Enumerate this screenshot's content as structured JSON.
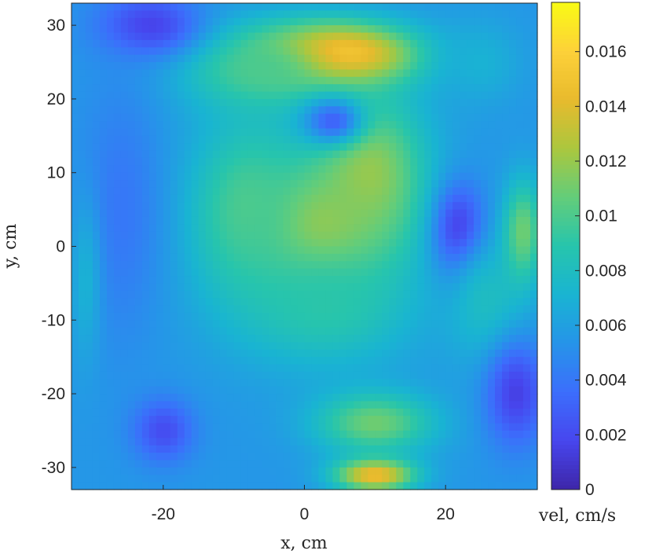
{
  "chart_data": {
    "type": "heatmap",
    "title": "",
    "xlabel": "x, cm",
    "ylabel": "y, cm",
    "colorbar_label": "vel, cm/s",
    "colormap": "parula",
    "xlim": [
      -33,
      33
    ],
    "ylim": [
      -33,
      33
    ],
    "xticks": [
      -20,
      0,
      20
    ],
    "xtick_labels": [
      "-20",
      "0",
      "20"
    ],
    "yticks": [
      30,
      20,
      10,
      0,
      -10,
      -20,
      -30
    ],
    "ytick_labels": [
      "30",
      "20",
      "10",
      "0",
      "-10",
      "-20",
      "-30"
    ],
    "clim": [
      0,
      0.0178
    ],
    "colorbar_ticks": [
      0,
      0.002,
      0.004,
      0.006,
      0.008,
      0.01,
      0.012,
      0.014,
      0.016
    ],
    "colorbar_tick_labels": [
      "0",
      "0.002",
      "0.004",
      "0.006",
      "0.008",
      "0.01",
      "0.012",
      "0.014",
      "0.016"
    ],
    "grid": false,
    "features": [
      {
        "x": 4,
        "y": 26,
        "value": 0.0178,
        "sx": 8,
        "sy": 3
      },
      {
        "x": -6,
        "y": 24,
        "value": 0.01,
        "sx": 8,
        "sy": 4
      },
      {
        "x": 2,
        "y": 2,
        "value": 0.0135,
        "sx": 7,
        "sy": 6
      },
      {
        "x": 9,
        "y": 10,
        "value": 0.012,
        "sx": 6,
        "sy": 8
      },
      {
        "x": -8,
        "y": 5,
        "value": 0.01,
        "sx": 6,
        "sy": 9
      },
      {
        "x": 3,
        "y": -8,
        "value": 0.009,
        "sx": 9,
        "sy": 6
      },
      {
        "x": 4,
        "y": 17,
        "value": 0.003,
        "sx": 3,
        "sy": 2.2
      },
      {
        "x": 22,
        "y": 2,
        "value": 0.001,
        "sx": 2.5,
        "sy": 4.5
      },
      {
        "x": 10,
        "y": -31,
        "value": 0.015,
        "sx": 4,
        "sy": 1.6
      },
      {
        "x": 10,
        "y": -24,
        "value": 0.011,
        "sx": 6,
        "sy": 3
      },
      {
        "x": 26,
        "y": -8,
        "value": 0.008,
        "sx": 4,
        "sy": 6
      },
      {
        "x": 31,
        "y": 2,
        "value": 0.011,
        "sx": 2,
        "sy": 5
      },
      {
        "x": 30,
        "y": -20,
        "value": 0.0015,
        "sx": 3,
        "sy": 5
      },
      {
        "x": -22,
        "y": 30,
        "value": 0.0015,
        "sx": 5,
        "sy": 3
      },
      {
        "x": -20,
        "y": -25,
        "value": 0.002,
        "sx": 3,
        "sy": 3
      },
      {
        "x": -26,
        "y": 5,
        "value": 0.004,
        "sx": 4,
        "sy": 12
      },
      {
        "x": -31,
        "y": -5,
        "value": 0.007,
        "sx": 1.5,
        "sy": 8
      },
      {
        "x": 25,
        "y": 25,
        "value": 0.007,
        "sx": 4,
        "sy": 4
      }
    ]
  }
}
